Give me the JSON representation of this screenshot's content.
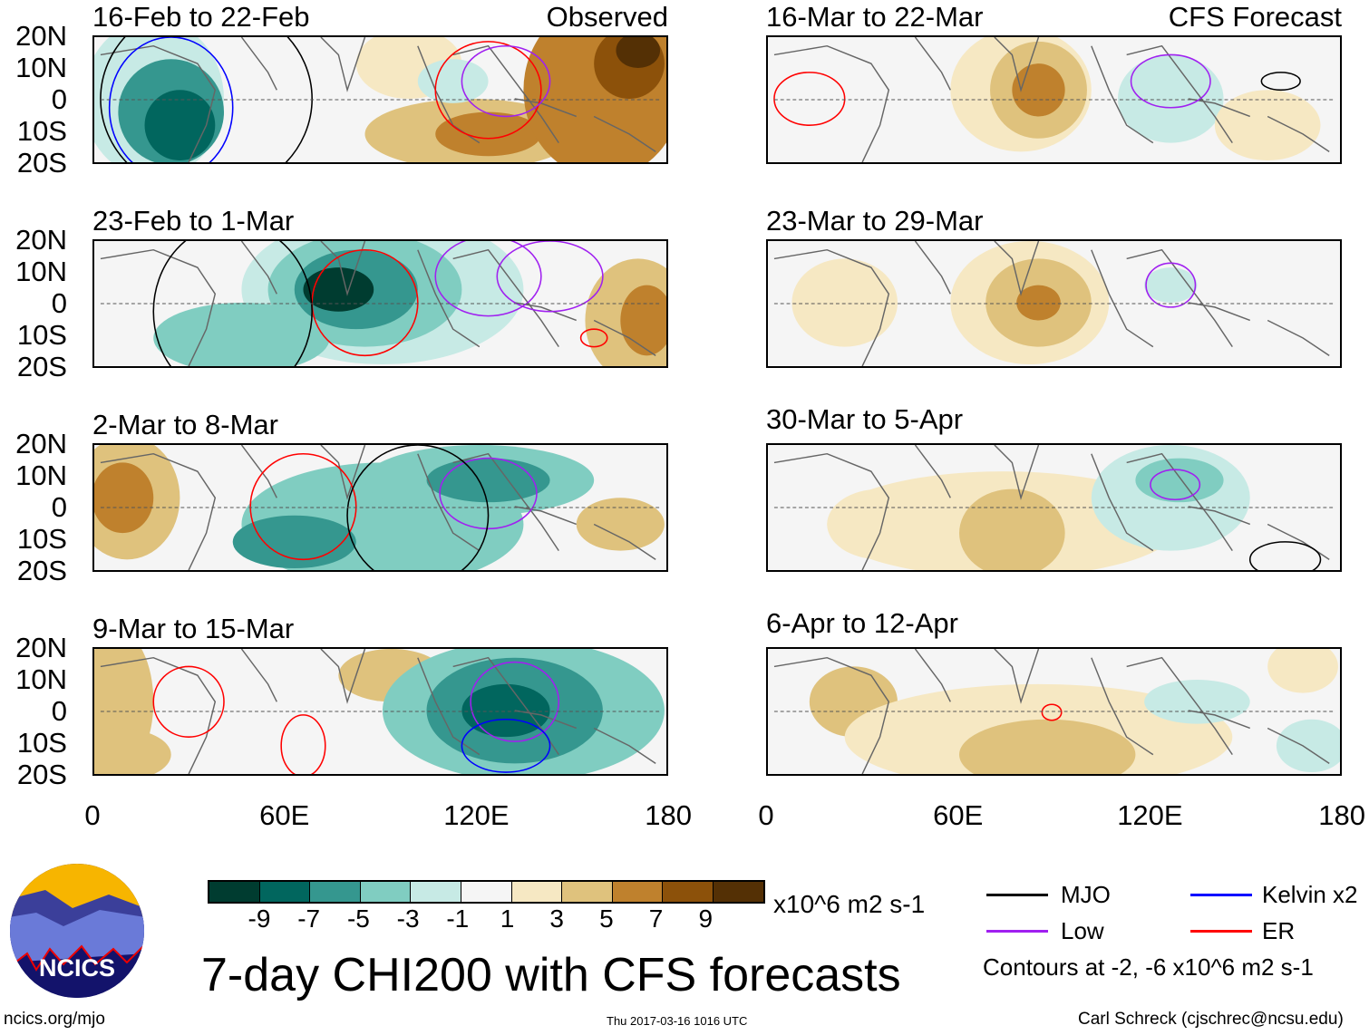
{
  "panels_left": [
    {
      "title": "16-Feb to 22-Feb",
      "tag": "Observed"
    },
    {
      "title": "23-Feb to 1-Mar"
    },
    {
      "title": "2-Mar to 8-Mar"
    },
    {
      "title": "9-Mar to 15-Mar"
    }
  ],
  "panels_right": [
    {
      "title": "16-Mar to 22-Mar",
      "tag": "CFS Forecast"
    },
    {
      "title": "23-Mar to 29-Mar"
    },
    {
      "title": "30-Mar to 5-Apr"
    },
    {
      "title": "6-Apr to 12-Apr"
    }
  ],
  "chart_data": {
    "type": "heatmap",
    "title": "7-day CHI200 with CFS forecasts",
    "units": "x10^6 m2 s-1",
    "y_ticks": [
      "20N",
      "10N",
      "0",
      "10S",
      "20S"
    ],
    "x_ticks": [
      "0",
      "60E",
      "120E",
      "180"
    ],
    "colorbar_labels": [
      "-9",
      "-7",
      "-5",
      "-3",
      "-1",
      "1",
      "3",
      "5",
      "7",
      "9"
    ],
    "colorbar_colors": [
      "#003c30",
      "#01665e",
      "#35978f",
      "#80cdc1",
      "#c7eae5",
      "#f5f5f5",
      "#f6e8c3",
      "#dfc27d",
      "#bf812d",
      "#8c510a",
      "#543005"
    ],
    "legend": [
      {
        "label": "MJO",
        "color": "#000000"
      },
      {
        "label": "Kelvin x2",
        "color": "#0000ff"
      },
      {
        "label": "Low",
        "color": "#a020f0"
      },
      {
        "label": "ER",
        "color": "#ff0000"
      }
    ],
    "contour_note": "Contours at -2, -6 x10^6 m2 s-1"
  },
  "logo_text": "NCICS",
  "footer": {
    "url": "ncics.org/mjo",
    "timestamp": "Thu 2017-03-16 1016 UTC",
    "author": "Carl Schreck (cjschrec@ncsu.edu)"
  }
}
